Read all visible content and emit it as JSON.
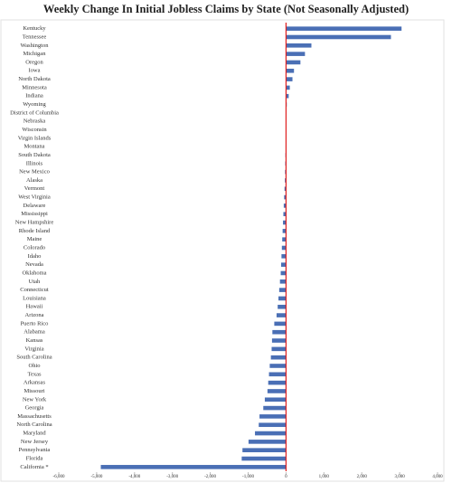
{
  "chart_data": {
    "type": "barh",
    "title": "Weekly Change In Initial Jobless Claims by State (Not Seasonally Adjusted)",
    "categories": [
      "Kentucky",
      "Tennessee",
      "Washington",
      "Michigan",
      "Oregon",
      "Iowa",
      "North Dakota",
      "Minnesota",
      "Indiana",
      "Wyoming",
      "District of Columbia",
      "Nebraska",
      "Wisconsin",
      "Virgin Islands",
      "Montana",
      "South Dakota",
      "Illinois",
      "New Mexico",
      "Alaska",
      "Vermont",
      "West Virginia",
      "Delaware",
      "Mississippi",
      "New Hampshire",
      "Rhode Island",
      "Maine",
      "Colorado",
      "Idaho",
      "Nevada",
      "Oklahoma",
      "Utah",
      "Connecticut",
      "Louisiana",
      "Hawaii",
      "Arizona",
      "Puerto Rico",
      "Alabama",
      "Kansas",
      "Virginia",
      "South Carolina",
      "Ohio",
      "Texas",
      "Arkansas",
      "Missouri",
      "New York",
      "Georgia",
      "Massachusetts",
      "North Carolina",
      "Maryland",
      "New Jersey",
      "Pennsylvania",
      "Florida",
      "California *"
    ],
    "values": [
      3050,
      2770,
      670,
      500,
      380,
      210,
      170,
      100,
      70,
      20,
      10,
      5,
      0,
      0,
      -10,
      -15,
      -20,
      -25,
      -30,
      -40,
      -50,
      -60,
      -70,
      -80,
      -90,
      -100,
      -110,
      -120,
      -130,
      -140,
      -160,
      -180,
      -200,
      -220,
      -250,
      -310,
      -360,
      -370,
      -380,
      -400,
      -430,
      -450,
      -470,
      -490,
      -560,
      -600,
      -700,
      -720,
      -820,
      -990,
      -1150,
      -1170,
      -4890
    ],
    "color": "#4a6fb5",
    "zero_line_color": "#e02020",
    "xlim": [
      -6000,
      4000
    ],
    "xticks": [
      {
        "value": -6000,
        "label": "-6,000"
      },
      {
        "value": -5000,
        "label": "-5,000"
      },
      {
        "value": -4000,
        "label": "-4,000"
      },
      {
        "value": -3000,
        "label": "-3,000"
      },
      {
        "value": -2000,
        "label": "-2,000"
      },
      {
        "value": -1000,
        "label": "-1,000"
      },
      0,
      {
        "value": 1000,
        "label": "1,000"
      },
      {
        "value": 2000,
        "label": "2,000"
      },
      {
        "value": 3000,
        "label": "3,000"
      },
      {
        "value": 4000,
        "label": "4,000"
      }
    ]
  }
}
